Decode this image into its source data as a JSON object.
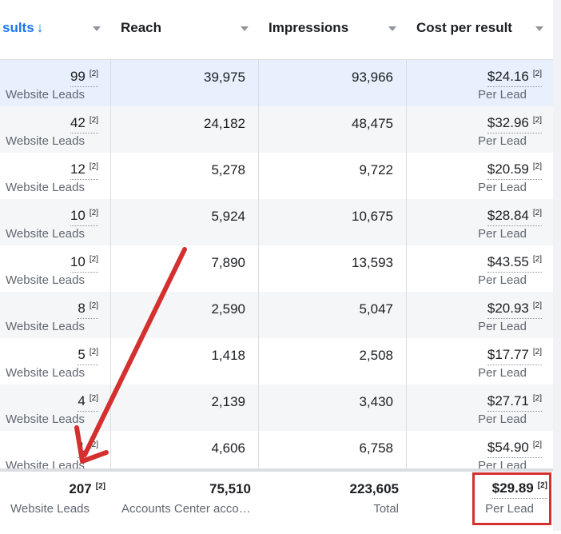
{
  "header": {
    "results_label": "sults",
    "results_sort_glyph": "↓",
    "reach_label": "Reach",
    "impressions_label": "Impressions",
    "cost_label": "Cost per result"
  },
  "rows": [
    {
      "results": "99",
      "results_note": "[2]",
      "results_type": "Website Leads",
      "reach": "39,975",
      "impressions": "93,966",
      "cost": "$24.16",
      "cost_note": "[2]",
      "cost_type": "Per Lead"
    },
    {
      "results": "42",
      "results_note": "[2]",
      "results_type": "Website Leads",
      "reach": "24,182",
      "impressions": "48,475",
      "cost": "$32.96",
      "cost_note": "[2]",
      "cost_type": "Per Lead"
    },
    {
      "results": "12",
      "results_note": "[2]",
      "results_type": "Website Leads",
      "reach": "5,278",
      "impressions": "9,722",
      "cost": "$20.59",
      "cost_note": "[2]",
      "cost_type": "Per Lead"
    },
    {
      "results": "10",
      "results_note": "[2]",
      "results_type": "Website Leads",
      "reach": "5,924",
      "impressions": "10,675",
      "cost": "$28.84",
      "cost_note": "[2]",
      "cost_type": "Per Lead"
    },
    {
      "results": "10",
      "results_note": "[2]",
      "results_type": "Website Leads",
      "reach": "7,890",
      "impressions": "13,593",
      "cost": "$43.55",
      "cost_note": "[2]",
      "cost_type": "Per Lead"
    },
    {
      "results": "8",
      "results_note": "[2]",
      "results_type": "Website Leads",
      "reach": "2,590",
      "impressions": "5,047",
      "cost": "$20.93",
      "cost_note": "[2]",
      "cost_type": "Per Lead"
    },
    {
      "results": "5",
      "results_note": "[2]",
      "results_type": "Website Leads",
      "reach": "1,418",
      "impressions": "2,508",
      "cost": "$17.77",
      "cost_note": "[2]",
      "cost_type": "Per Lead"
    },
    {
      "results": "4",
      "results_note": "[2]",
      "results_type": "Website Leads",
      "reach": "2,139",
      "impressions": "3,430",
      "cost": "$27.71",
      "cost_note": "[2]",
      "cost_type": "Per Lead"
    },
    {
      "results": "1",
      "results_note": "[2]",
      "results_type": "Website Leads",
      "reach": "4,606",
      "impressions": "6,758",
      "cost": "$54.90",
      "cost_note": "[2]",
      "cost_type": "Per Lead"
    }
  ],
  "totals": {
    "results": "207",
    "results_note": "[2]",
    "results_type": "Website Leads",
    "reach": "75,510",
    "reach_type": "Accounts Center acco…",
    "impressions": "223,605",
    "impressions_type": "Total",
    "cost": "$29.89",
    "cost_note": "[2]",
    "cost_type": "Per Lead"
  },
  "annotations": {
    "arrow_color": "#d3302f",
    "box_color": "#d3302f"
  },
  "icons": {
    "sort": "caret-down-icon",
    "arrow": "red-arrow-annotation"
  }
}
